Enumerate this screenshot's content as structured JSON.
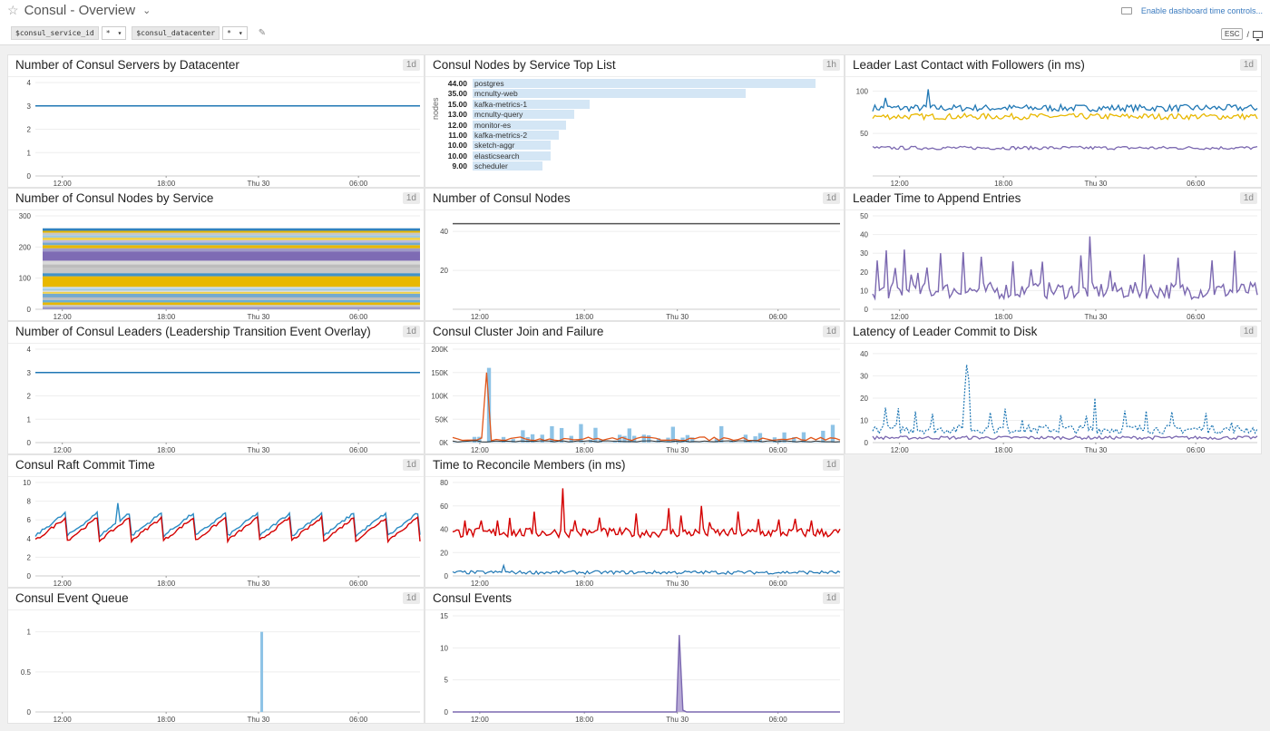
{
  "header": {
    "title": "Consul - Overview",
    "time_controls_label": "Enable dashboard time controls...",
    "esc_label": "ESC",
    "esc_sep": "/",
    "template_vars": [
      {
        "name": "$consul_service_id",
        "value": "*"
      },
      {
        "name": "$consul_datacenter",
        "value": "*"
      }
    ]
  },
  "time_axis": [
    "12:00",
    "18:00",
    "Thu 30",
    "06:00"
  ],
  "widgets": {
    "servers": {
      "title": "Number of Consul Servers by Datacenter",
      "badge": "1d"
    },
    "toplist": {
      "title": "Consul Nodes by Service Top List",
      "badge": "1h"
    },
    "lastcontact": {
      "title": "Leader Last Contact with Followers (in ms)",
      "badge": "1d"
    },
    "nodesbysvc": {
      "title": "Number of Consul Nodes by Service",
      "badge": "1d"
    },
    "numnodes": {
      "title": "Number of Consul Nodes",
      "badge": "1d"
    },
    "append": {
      "title": "Leader Time to Append Entries",
      "badge": "1d"
    },
    "leaders": {
      "title": "Number of Consul Leaders (Leadership Transition Event Overlay)",
      "badge": "1d"
    },
    "joinfail": {
      "title": "Consul Cluster Join and Failure",
      "badge": "1d"
    },
    "commitdisk": {
      "title": "Latency of Leader Commit to Disk",
      "badge": "1d"
    },
    "raft": {
      "title": "Consul Raft Commit Time",
      "badge": "1d"
    },
    "reconcile": {
      "title": "Time to Reconcile Members (in ms)",
      "badge": "1d"
    },
    "queue": {
      "title": "Consul Event Queue",
      "badge": "1d"
    },
    "events": {
      "title": "Consul Events",
      "badge": "1d"
    }
  },
  "toplist_ylabel": "nodes",
  "colors": {
    "blue": "#1f77b4",
    "purple": "#7b68b0",
    "yellow": "#e8b800",
    "red": "#d40000",
    "lightblue": "#8ec3e6",
    "gray": "#555555"
  },
  "chart_data": [
    {
      "id": "servers",
      "type": "line",
      "ylim": [
        0,
        4
      ],
      "yticks": [
        "0",
        "1",
        "2",
        "3",
        "4"
      ],
      "series": [
        {
          "values": [
            3,
            3,
            3,
            3,
            3,
            3,
            3,
            3,
            3,
            3
          ]
        }
      ]
    },
    {
      "id": "toplist",
      "type": "bar",
      "ylabel": "nodes",
      "categories": [
        "postgres",
        "mcnulty-web",
        "kafka-metrics-1",
        "mcnulty-query",
        "monitor-es",
        "kafka-metrics-2",
        "sketch-aggr",
        "elasticsearch",
        "scheduler"
      ],
      "values": [
        44,
        35,
        15,
        13,
        12,
        11,
        10,
        10,
        9
      ],
      "value_labels": [
        "44.00",
        "35.00",
        "15.00",
        "13.00",
        "12.00",
        "11.00",
        "10.00",
        "10.00",
        "9.00"
      ]
    },
    {
      "id": "lastcontact",
      "type": "line",
      "ylim": [
        0,
        110
      ],
      "yticks": [
        "50",
        "100"
      ],
      "series": [
        {
          "approx": 80
        },
        {
          "approx": 70
        },
        {
          "approx": 33
        }
      ]
    },
    {
      "id": "nodesbysvc",
      "type": "area",
      "ylim": [
        0,
        300
      ],
      "yticks": [
        "0",
        "100",
        "200",
        "300"
      ],
      "total_approx": 260
    },
    {
      "id": "numnodes",
      "type": "line",
      "ylim": [
        0,
        48
      ],
      "yticks": [
        "20",
        "40"
      ],
      "series": [
        {
          "values": [
            44,
            44,
            44,
            44,
            44
          ]
        }
      ]
    },
    {
      "id": "append",
      "type": "line",
      "ylim": [
        0,
        50
      ],
      "yticks": [
        "0",
        "10",
        "20",
        "30",
        "40",
        "50"
      ],
      "series": [
        {
          "approx": 12,
          "peak": 39
        }
      ]
    },
    {
      "id": "leaders",
      "type": "line",
      "ylim": [
        0,
        4
      ],
      "yticks": [
        "0",
        "1",
        "2",
        "3",
        "4"
      ],
      "series": [
        {
          "values": [
            3,
            3,
            3,
            3,
            3
          ]
        }
      ]
    },
    {
      "id": "joinfail",
      "type": "bar",
      "ylim": [
        0,
        200000
      ],
      "yticks": [
        "0K",
        "50K",
        "100K",
        "150K",
        "200K"
      ],
      "peak": 160000
    },
    {
      "id": "commitdisk",
      "type": "line",
      "ylim": [
        0,
        42
      ],
      "yticks": [
        "0",
        "10",
        "20",
        "30",
        "40"
      ],
      "series": [
        {
          "approx": 6,
          "peak": 35
        },
        {
          "approx": 2
        }
      ]
    },
    {
      "id": "raft",
      "type": "line",
      "ylim": [
        0,
        10
      ],
      "yticks": [
        "0",
        "2",
        "4",
        "6",
        "8",
        "10"
      ],
      "series": [
        {
          "approx": 5.5,
          "peak": 7.8
        },
        {
          "approx": 5
        }
      ]
    },
    {
      "id": "reconcile",
      "type": "line",
      "ylim": [
        0,
        80
      ],
      "yticks": [
        "0",
        "20",
        "40",
        "60",
        "80"
      ],
      "series": [
        {
          "approx": 37,
          "peak": 75
        },
        {
          "approx": 3
        }
      ]
    },
    {
      "id": "queue",
      "type": "bar",
      "ylim": [
        0,
        1.2
      ],
      "yticks": [
        "0",
        "0.5",
        "1"
      ],
      "peak": 1
    },
    {
      "id": "events",
      "type": "area",
      "ylim": [
        0,
        15
      ],
      "yticks": [
        "0",
        "5",
        "10",
        "15"
      ],
      "peak": 12
    }
  ]
}
